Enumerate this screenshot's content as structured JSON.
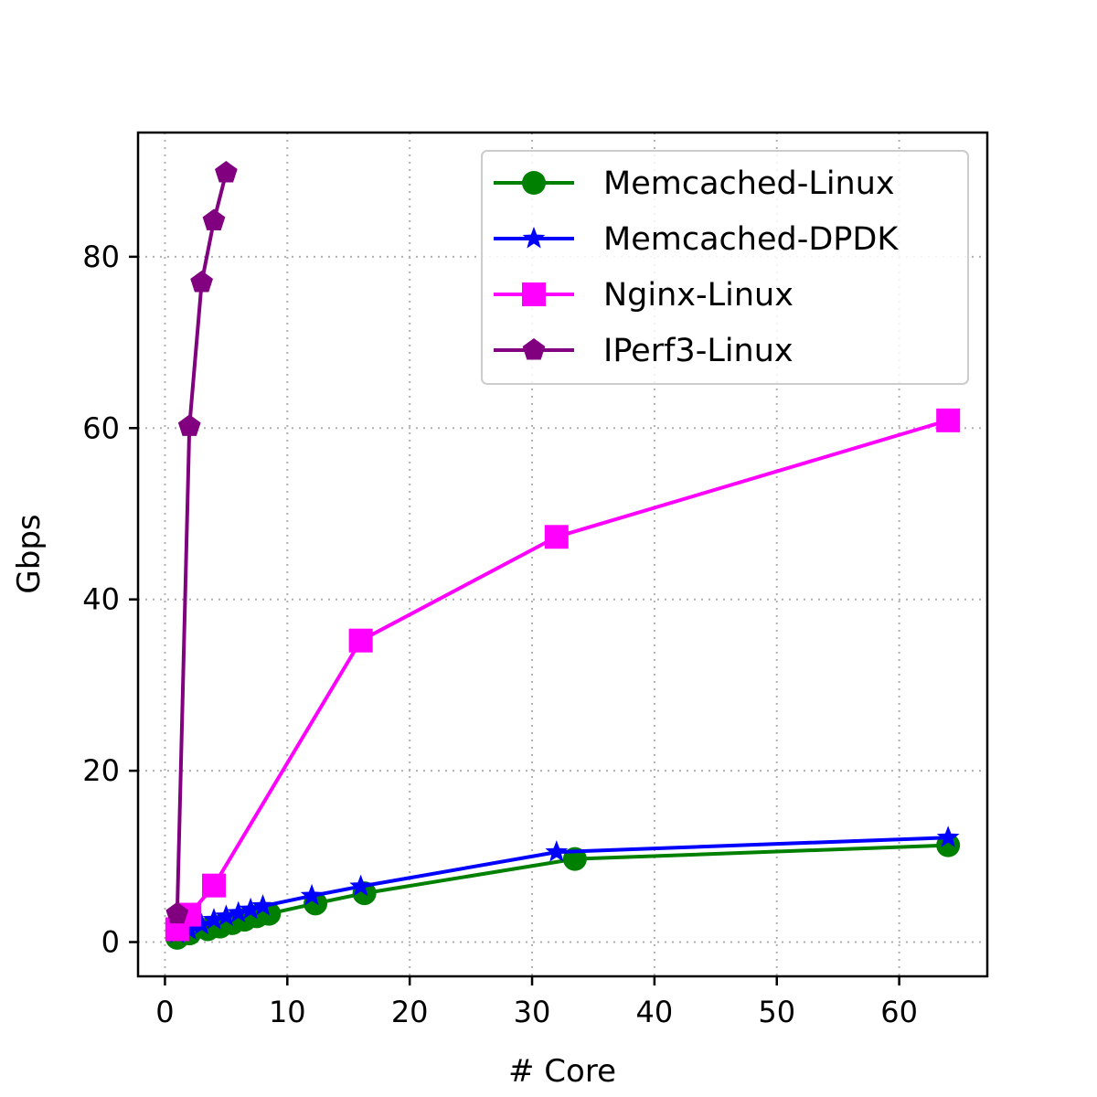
{
  "chart_data": {
    "type": "line",
    "title": "",
    "xlabel": "# Core",
    "ylabel": "Gbps",
    "xlim": [
      -2.2,
      67.2
    ],
    "ylim": [
      -4,
      94.5
    ],
    "xticks": [
      0,
      10,
      20,
      30,
      40,
      50,
      60
    ],
    "yticks": [
      0,
      20,
      40,
      60,
      80
    ],
    "grid": true,
    "legend_position": "top-right",
    "series": [
      {
        "name": "Memcached-Linux",
        "color": "#008000",
        "marker": "circle",
        "x": [
          1,
          2,
          3.5,
          4.5,
          5.5,
          6.5,
          7.5,
          8.5,
          12.3,
          16.3,
          33.5,
          64
        ],
        "y": [
          0.5,
          1.0,
          1.5,
          1.8,
          2.2,
          2.6,
          3.0,
          3.3,
          4.5,
          5.7,
          9.7,
          11.3
        ]
      },
      {
        "name": "Memcached-DPDK",
        "color": "#0000ff",
        "marker": "star",
        "x": [
          1,
          2,
          3,
          4,
          5,
          6,
          7,
          8,
          12,
          16,
          32,
          64
        ],
        "y": [
          1.0,
          1.4,
          2.0,
          2.6,
          3.0,
          3.4,
          3.8,
          4.2,
          5.4,
          6.5,
          10.5,
          12.2
        ]
      },
      {
        "name": "Nginx-Linux",
        "color": "#ff00ff",
        "marker": "square",
        "x": [
          1,
          2,
          4,
          16,
          32,
          64
        ],
        "y": [
          1.5,
          3.2,
          6.6,
          35.2,
          47.3,
          60.9
        ]
      },
      {
        "name": "IPerf3-Linux",
        "color": "#800080",
        "marker": "pentagon",
        "x": [
          1,
          2,
          3,
          4,
          5
        ],
        "y": [
          3.3,
          60.2,
          77.0,
          84.2,
          89.8
        ]
      }
    ]
  }
}
